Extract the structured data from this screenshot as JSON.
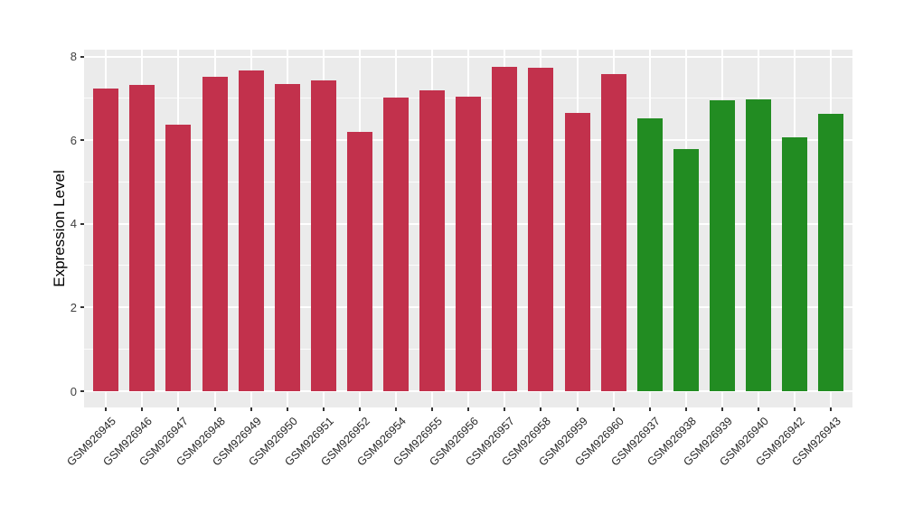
{
  "figure": {
    "background_color": "#FFFFFF",
    "panel_background_color": "#EBEBEB",
    "gridline_color": "#FFFFFF",
    "axis_tick_color": "#333333",
    "axis_text_color": "#404040",
    "axis_title_color": "#000000"
  },
  "chart_data": {
    "type": "bar",
    "title": "",
    "xlabel": "",
    "ylabel": "Expression Level",
    "ylim": [
      0,
      8.2
    ],
    "yticks": [
      0,
      2,
      4,
      6,
      8
    ],
    "yticks_minor": [
      1,
      3,
      5,
      7
    ],
    "grid": "white major and minor horizontal lines plus vertical major lines on gray panel",
    "legend_position": "none",
    "x_label_rotation_deg": 45,
    "group_colors": {
      "group1": "#C2314C",
      "group2": "#228C22"
    },
    "categories": [
      "GSM926945",
      "GSM926946",
      "GSM926947",
      "GSM926948",
      "GSM926949",
      "GSM926950",
      "GSM926951",
      "GSM926952",
      "GSM926954",
      "GSM926955",
      "GSM926956",
      "GSM926957",
      "GSM926958",
      "GSM926959",
      "GSM926960",
      "GSM926937",
      "GSM926938",
      "GSM926939",
      "GSM926940",
      "GSM926942",
      "GSM926943"
    ],
    "values": [
      7.23,
      7.33,
      6.37,
      7.52,
      7.67,
      7.35,
      7.44,
      6.2,
      7.02,
      7.2,
      7.04,
      7.76,
      7.73,
      6.66,
      7.59,
      6.52,
      5.79,
      6.95,
      6.99,
      6.07,
      6.63
    ],
    "groups": [
      "group1",
      "group1",
      "group1",
      "group1",
      "group1",
      "group1",
      "group1",
      "group1",
      "group1",
      "group1",
      "group1",
      "group1",
      "group1",
      "group1",
      "group1",
      "group2",
      "group2",
      "group2",
      "group2",
      "group2",
      "group2"
    ]
  }
}
